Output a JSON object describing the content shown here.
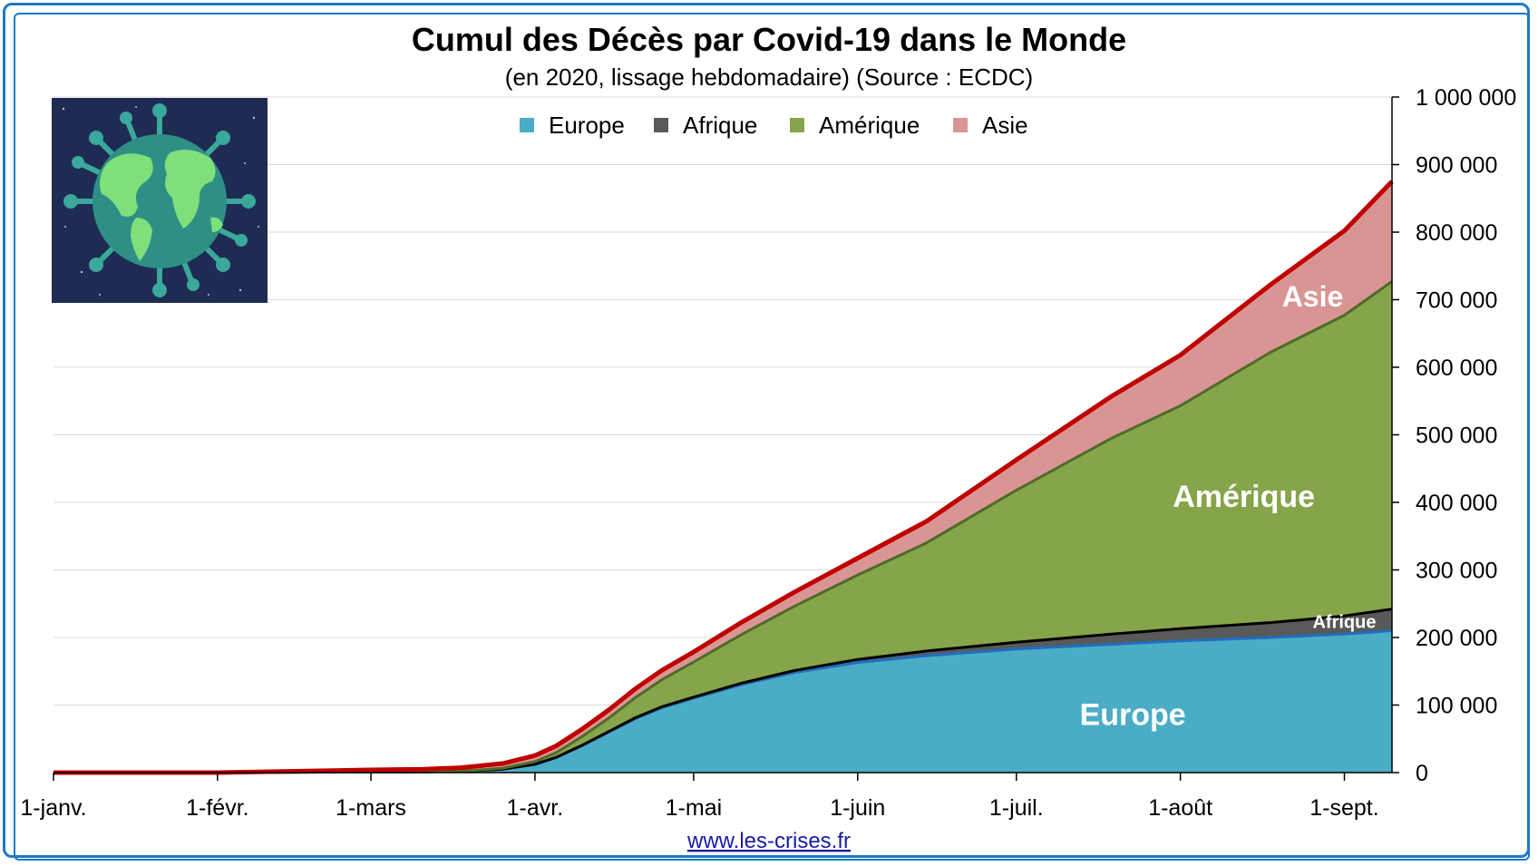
{
  "chart_data": {
    "type": "area",
    "stacked": true,
    "title": "Cumul des Décès par Covid-19 dans le Monde",
    "subtitle": "(en 2020, lissage hebdomadaire) (Source : ECDC)",
    "x_unit": "days since 1 Jan 2020",
    "x": [
      0,
      31,
      60,
      70,
      77,
      80,
      85,
      91,
      95,
      100,
      105,
      110,
      115,
      121,
      130,
      140,
      152,
      165,
      182,
      200,
      213,
      230,
      244,
      253
    ],
    "ylim": [
      0,
      1000000
    ],
    "yticks": [
      "0",
      "100 000",
      "200 000",
      "300 000",
      "400 000",
      "500 000",
      "600 000",
      "700 000",
      "800 000",
      "900 000",
      "1 000 000"
    ],
    "xticks": [
      {
        "day": 0,
        "label": "1-janv."
      },
      {
        "day": 31,
        "label": "1-févr."
      },
      {
        "day": 60,
        "label": "1-mars"
      },
      {
        "day": 91,
        "label": "1-avr."
      },
      {
        "day": 121,
        "label": "1-mai"
      },
      {
        "day": 152,
        "label": "1-juin"
      },
      {
        "day": 182,
        "label": "1-juil."
      },
      {
        "day": 213,
        "label": "1-août"
      },
      {
        "day": 244,
        "label": "1-sept."
      }
    ],
    "legend_position": "top-center",
    "series": [
      {
        "name": "Europe",
        "color": "#4bacc6",
        "line": "#1f6fbf",
        "values": [
          0,
          0,
          1000,
          1000,
          2000,
          3000,
          5000,
          12000,
          22000,
          40000,
          60000,
          80000,
          96000,
          110000,
          130000,
          148000,
          163000,
          173000,
          183000,
          190000,
          195000,
          200000,
          205000,
          210000
        ]
      },
      {
        "name": "Afrique",
        "color": "#595959",
        "line": "#000000",
        "values": [
          0,
          0,
          0,
          0,
          0,
          0,
          100,
          300,
          500,
          800,
          1000,
          1200,
          1400,
          1700,
          2200,
          3000,
          4500,
          7000,
          10000,
          15000,
          18000,
          22000,
          27000,
          32000
        ]
      },
      {
        "name": "Amérique",
        "color": "#86a54a",
        "line": "#4e6b2a",
        "values": [
          0,
          0,
          0,
          0,
          200,
          500,
          1500,
          4000,
          7000,
          13000,
          20000,
          30000,
          40000,
          52000,
          72000,
          95000,
          125000,
          160000,
          225000,
          290000,
          330000,
          400000,
          445000,
          485000
        ]
      },
      {
        "name": "Asie",
        "color": "#d99594",
        "line": "#c00000",
        "values": [
          0,
          0,
          3000,
          4000,
          5000,
          6000,
          7000,
          9000,
          10000,
          11000,
          12000,
          13000,
          14000,
          15000,
          18000,
          21000,
          25000,
          32000,
          45000,
          62000,
          75000,
          100000,
          125000,
          148000
        ]
      }
    ],
    "area_labels": [
      "Europe",
      "Afrique",
      "Amérique",
      "Asie"
    ]
  },
  "footer_link": "www.les-crises.fr",
  "illustration": "globe-virus-icon"
}
